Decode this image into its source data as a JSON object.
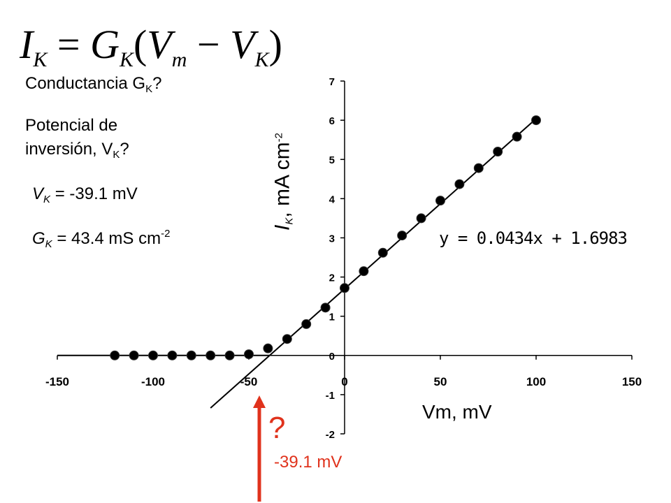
{
  "formula": {
    "lhs": "I",
    "lhs_sub": "K",
    "eq": "=",
    "g": "G",
    "g_sub": "K",
    "open": "(",
    "vm": "V",
    "vm_sub": "m",
    "minus": "−",
    "vk": "V",
    "vk_sub": "K",
    "close": ")"
  },
  "questions": {
    "conductance": "Conductancia G",
    "conductance_sub": "K",
    "conductance_end": "?",
    "potential_line1": "Potencial de",
    "potential_line2": "inversión, V",
    "potential_sub": "K",
    "potential_end": "?"
  },
  "answers": {
    "vk_symbol": "V",
    "vk_sub": "K",
    "vk_value": " = -39.1 mV",
    "gk_symbol": "G",
    "gk_sub": "K",
    "gk_value": " = 43.4 mS cm",
    "gk_sup": "-2"
  },
  "arrow": {
    "question_mark": "?",
    "value_label": "-39.1 mV",
    "color": "#e0321c"
  },
  "chart_data": {
    "type": "scatter",
    "xlabel": "Vm, mV",
    "ylabel_symbol": "I",
    "ylabel_sub": "K",
    "ylabel_rest": ", mA cm",
    "ylabel_sup": "-2",
    "xlim": [
      -150,
      150
    ],
    "ylim": [
      -2,
      7
    ],
    "xticks": [
      -150,
      -100,
      -50,
      0,
      50,
      100,
      150
    ],
    "yticks": [
      -2,
      -1,
      0,
      1,
      2,
      3,
      4,
      5,
      6,
      7
    ],
    "grid": false,
    "series": [
      {
        "x": [
          -120,
          -110,
          -100,
          -90,
          -80,
          -70,
          -60,
          -50,
          -40,
          -30,
          -20,
          -10,
          0,
          10,
          20,
          30,
          40,
          50,
          60,
          70,
          80,
          90,
          100
        ],
        "y": [
          0,
          0,
          0,
          0,
          0,
          0,
          0,
          0.03,
          0.18,
          0.42,
          0.8,
          1.22,
          1.72,
          2.15,
          2.62,
          3.06,
          3.5,
          3.95,
          4.37,
          4.78,
          5.2,
          5.58,
          6.0
        ]
      }
    ],
    "baseline_segment": {
      "x": [
        -150,
        -39.1
      ],
      "y": [
        0,
        0
      ]
    },
    "trendline": {
      "slope": 0.0434,
      "intercept": 1.6983,
      "x_range": [
        -70,
        100
      ],
      "equation": "y = 0.0434x + 1.6983"
    },
    "marker_color": "#000000"
  }
}
